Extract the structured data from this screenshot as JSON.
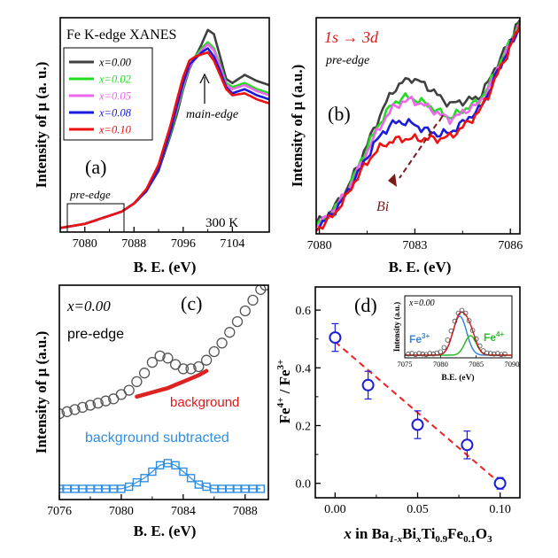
{
  "colors": {
    "x000": "#404040",
    "x002": "#22dd22",
    "x005": "#ee66ee",
    "x008": "#1a1adc",
    "x010": "#ee1111",
    "fit_total": "#dd2222",
    "fe3": "#3a86d8",
    "fe4": "#2dbb2d",
    "subtracted": "#2f8fe0",
    "trend": "#ee2222",
    "marker": "#1d1dd6",
    "arrow": "#7a1a1a"
  },
  "chart_data": [
    {
      "panel": "(a)",
      "type": "line",
      "title": "Fe K-edge XANES",
      "annotation_temp": "300 K",
      "annotation_main": "main-edge",
      "annotation_pre": "pre-edge",
      "xlabel": "B. E. (eV)",
      "ylabel": "Intensity of μ (a. u.)",
      "xlim": [
        7076,
        7110
      ],
      "ylim": [
        0,
        1.05
      ],
      "xticks": [
        "7080",
        "7088",
        "7096",
        "7104"
      ],
      "xtick_values": [
        7080,
        7088,
        7096,
        7104
      ],
      "legend": [
        "x=0.00",
        "x=0.02",
        "x=0.05",
        "x=0.08",
        "x=0.10"
      ],
      "x": [
        7076,
        7078,
        7080,
        7082,
        7084,
        7086,
        7088,
        7090,
        7092,
        7094,
        7095,
        7096,
        7097,
        7098,
        7099,
        7100,
        7101,
        7102,
        7103,
        7104,
        7106,
        7108,
        7110
      ],
      "series": [
        {
          "name": "x=0.00",
          "values": [
            0.02,
            0.03,
            0.04,
            0.06,
            0.08,
            0.1,
            0.14,
            0.2,
            0.3,
            0.48,
            0.58,
            0.7,
            0.8,
            0.86,
            0.92,
            0.99,
            0.97,
            0.86,
            0.75,
            0.73,
            0.77,
            0.74,
            0.72
          ]
        },
        {
          "name": "x=0.02",
          "values": [
            0.02,
            0.03,
            0.04,
            0.06,
            0.08,
            0.1,
            0.14,
            0.2,
            0.31,
            0.49,
            0.6,
            0.71,
            0.81,
            0.86,
            0.9,
            0.93,
            0.9,
            0.82,
            0.73,
            0.71,
            0.73,
            0.7,
            0.68
          ]
        },
        {
          "name": "x=0.05",
          "values": [
            0.02,
            0.03,
            0.04,
            0.06,
            0.08,
            0.1,
            0.14,
            0.2,
            0.31,
            0.5,
            0.61,
            0.72,
            0.81,
            0.85,
            0.89,
            0.92,
            0.89,
            0.81,
            0.72,
            0.7,
            0.72,
            0.69,
            0.67
          ]
        },
        {
          "name": "x=0.08",
          "values": [
            0.02,
            0.03,
            0.04,
            0.06,
            0.08,
            0.1,
            0.14,
            0.2,
            0.31,
            0.5,
            0.62,
            0.73,
            0.82,
            0.85,
            0.88,
            0.9,
            0.86,
            0.79,
            0.71,
            0.68,
            0.7,
            0.67,
            0.65
          ]
        },
        {
          "name": "x=0.10",
          "values": [
            0.02,
            0.03,
            0.04,
            0.06,
            0.08,
            0.1,
            0.14,
            0.21,
            0.33,
            0.53,
            0.65,
            0.76,
            0.84,
            0.86,
            0.87,
            0.88,
            0.84,
            0.77,
            0.7,
            0.67,
            0.68,
            0.65,
            0.63
          ]
        }
      ]
    },
    {
      "panel": "(b)",
      "type": "line",
      "annotation_transition": "1s → 3d",
      "annotation_pre": "pre-edge",
      "annotation_bi": "Bi",
      "xlabel": "B. E. (eV)",
      "ylabel": "Intensity of μ (a.u.)",
      "xlim": [
        7079.9,
        7086.3
      ],
      "ylim": [
        0,
        1
      ],
      "xticks": [
        "7080",
        "7083",
        "7086"
      ],
      "xtick_values": [
        7080,
        7083,
        7086
      ],
      "x": [
        7079.9,
        7080.2,
        7080.5,
        7080.8,
        7081.1,
        7081.4,
        7081.7,
        7082.0,
        7082.3,
        7082.6,
        7082.9,
        7083.2,
        7083.5,
        7083.8,
        7084.1,
        7084.4,
        7084.7,
        7085.0,
        7085.3,
        7085.6,
        7085.9,
        7086.1,
        7086.3
      ],
      "series": [
        {
          "name": "x=0.00",
          "values": [
            0.05,
            0.08,
            0.13,
            0.19,
            0.28,
            0.38,
            0.48,
            0.58,
            0.66,
            0.7,
            0.72,
            0.7,
            0.67,
            0.63,
            0.6,
            0.61,
            0.62,
            0.63,
            0.7,
            0.79,
            0.87,
            0.93,
            0.99
          ]
        },
        {
          "name": "x=0.02",
          "values": [
            0.04,
            0.07,
            0.12,
            0.18,
            0.27,
            0.37,
            0.46,
            0.54,
            0.6,
            0.63,
            0.63,
            0.61,
            0.59,
            0.56,
            0.54,
            0.56,
            0.59,
            0.61,
            0.68,
            0.77,
            0.86,
            0.92,
            0.98
          ]
        },
        {
          "name": "x=0.05",
          "values": [
            0.04,
            0.07,
            0.12,
            0.18,
            0.26,
            0.35,
            0.44,
            0.52,
            0.58,
            0.61,
            0.62,
            0.6,
            0.58,
            0.55,
            0.53,
            0.55,
            0.58,
            0.6,
            0.67,
            0.76,
            0.85,
            0.91,
            0.97
          ]
        },
        {
          "name": "x=0.08",
          "values": [
            0.03,
            0.06,
            0.11,
            0.17,
            0.25,
            0.33,
            0.41,
            0.47,
            0.51,
            0.52,
            0.51,
            0.49,
            0.47,
            0.46,
            0.47,
            0.5,
            0.54,
            0.57,
            0.65,
            0.75,
            0.84,
            0.9,
            0.96
          ]
        },
        {
          "name": "x=0.10",
          "values": [
            0.02,
            0.05,
            0.1,
            0.16,
            0.24,
            0.31,
            0.37,
            0.41,
            0.43,
            0.44,
            0.44,
            0.44,
            0.44,
            0.44,
            0.45,
            0.48,
            0.52,
            0.56,
            0.64,
            0.74,
            0.83,
            0.9,
            0.98
          ]
        }
      ]
    },
    {
      "panel": "(c)",
      "type": "scatter",
      "annotation_sample": "x=0.00",
      "annotation_pre": "pre-edge",
      "annotation_background": "background",
      "annotation_subtracted": "background subtracted",
      "xlabel": "B. E. (eV)",
      "ylabel": "Intensity of μ (a.u.)",
      "xlim": [
        7076,
        7089.5
      ],
      "ylim": [
        0,
        1
      ],
      "xticks": [
        "7076",
        "7080",
        "7084",
        "7088"
      ],
      "xtick_values": [
        7076,
        7080,
        7084,
        7088
      ],
      "series": [
        {
          "name": "pre-edge",
          "x": [
            7076.0,
            7076.5,
            7077.0,
            7077.5,
            7078.0,
            7078.5,
            7079.0,
            7079.5,
            7080.0,
            7080.5,
            7081.0,
            7081.5,
            7082.0,
            7082.5,
            7083.0,
            7083.5,
            7084.0,
            7084.5,
            7085.0,
            7085.5,
            7086.0,
            7086.5,
            7087.0,
            7087.5,
            7088.0,
            7088.5,
            7089.0,
            7089.3
          ],
          "values": [
            0.4,
            0.41,
            0.42,
            0.43,
            0.44,
            0.45,
            0.46,
            0.47,
            0.49,
            0.51,
            0.55,
            0.59,
            0.64,
            0.67,
            0.66,
            0.63,
            0.61,
            0.61,
            0.62,
            0.65,
            0.69,
            0.73,
            0.78,
            0.83,
            0.88,
            0.93,
            0.98,
            1.0
          ]
        },
        {
          "name": "background",
          "x": [
            7081.0,
            7081.5,
            7082.0,
            7082.5,
            7083.0,
            7083.5,
            7084.0,
            7084.5,
            7085.0,
            7085.5
          ],
          "values": [
            0.48,
            0.49,
            0.5,
            0.51,
            0.52,
            0.535,
            0.55,
            0.565,
            0.58,
            0.6
          ]
        },
        {
          "name": "background subtracted",
          "x": [
            7076.0,
            7076.5,
            7077.0,
            7077.5,
            7078.0,
            7078.5,
            7079.0,
            7079.5,
            7080.0,
            7080.5,
            7081.0,
            7081.5,
            7082.0,
            7082.5,
            7083.0,
            7083.5,
            7084.0,
            7084.5,
            7085.0,
            7085.5,
            7086.0,
            7086.5,
            7087.0,
            7087.5,
            7088.0,
            7088.5,
            7089.0
          ],
          "values": [
            0.05,
            0.05,
            0.05,
            0.05,
            0.05,
            0.05,
            0.05,
            0.05,
            0.05,
            0.06,
            0.08,
            0.1,
            0.13,
            0.16,
            0.17,
            0.16,
            0.13,
            0.1,
            0.07,
            0.06,
            0.05,
            0.05,
            0.05,
            0.05,
            0.05,
            0.05,
            0.05
          ]
        }
      ]
    },
    {
      "panel": "(d)",
      "type": "scatter",
      "xlabel_prefix": "x",
      "xlabel_mid": " in Ba",
      "xlabel_sub1": "1-x",
      "xlabel_bi": "Bi",
      "xlabel_sub2": "x",
      "xlabel_ti": "Ti",
      "xlabel_sub3": "0.9",
      "xlabel_fe": "Fe",
      "xlabel_sub4": "0.1",
      "xlabel_o": "O",
      "xlabel_sub5": "3",
      "ylabel_fe4": "Fe",
      "ylabel_sup4": "4+",
      "ylabel_slash": " / Fe",
      "ylabel_sup3": "3+",
      "xlim": [
        -0.012,
        0.112
      ],
      "ylim": [
        -0.05,
        0.68
      ],
      "xticks": [
        "0.00",
        "0.05",
        "0.10"
      ],
      "xtick_values": [
        0.0,
        0.05,
        0.1
      ],
      "yticks": [
        "0.0",
        "0.2",
        "0.4",
        "0.6"
      ],
      "ytick_values": [
        0.0,
        0.2,
        0.4,
        0.6
      ],
      "x": [
        0.0,
        0.02,
        0.05,
        0.08,
        0.1
      ],
      "values": [
        0.505,
        0.34,
        0.203,
        0.133,
        0.0
      ],
      "errors": [
        0.048,
        0.048,
        0.048,
        0.048,
        0.02
      ],
      "trend": [
        [
          0.0,
          0.49
        ],
        [
          0.1,
          0.0
        ]
      ],
      "inset": {
        "type": "line",
        "title": "x=0.00",
        "xlabel": "B.E. (eV)",
        "ylabel": "Intensity (a.u.)",
        "label_fe3": "Fe",
        "label_fe3_sup": "3+",
        "label_fe4": "Fe",
        "label_fe4_sup": "4+",
        "xlim": [
          7075,
          7090
        ],
        "ylim": [
          -0.05,
          1.1
        ],
        "xticks": [
          "7075",
          "7080",
          "7085",
          "7090"
        ],
        "xtick_values": [
          7075,
          7080,
          7085,
          7090
        ],
        "fe3": {
          "center": 7082.7,
          "sigma": 0.95,
          "amp": 0.72
        },
        "fe4": {
          "center": 7084.2,
          "sigma": 0.8,
          "amp": 0.36
        },
        "data_x": [
          7075.5,
          7076.0,
          7076.5,
          7077.0,
          7077.5,
          7078.0,
          7078.5,
          7079.0,
          7079.5,
          7080.0,
          7080.5,
          7081.0,
          7081.5,
          7082.0,
          7082.5,
          7083.0,
          7083.5,
          7084.0,
          7084.5,
          7085.0,
          7085.5,
          7086.0,
          7086.5,
          7087.0,
          7087.5,
          7088.0,
          7088.5,
          7089.0
        ],
        "data_y": [
          0.02,
          0.03,
          0.01,
          0.03,
          0.02,
          0.01,
          0.03,
          0.02,
          0.04,
          0.06,
          0.14,
          0.28,
          0.45,
          0.63,
          0.78,
          0.83,
          0.78,
          0.64,
          0.46,
          0.3,
          0.17,
          0.08,
          0.04,
          0.03,
          0.02,
          0.03,
          0.01,
          0.02
        ]
      }
    }
  ]
}
